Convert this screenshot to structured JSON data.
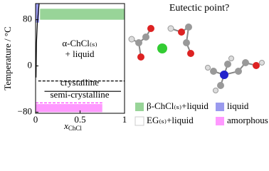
{
  "chart_data": {
    "type": "phase-diagram",
    "title": "Eutectic point?",
    "ylabel": "Temperature / °C",
    "xlabel": {
      "main": "x",
      "sub": "ChCl"
    },
    "xlim": [
      0,
      1
    ],
    "xticks": [
      0,
      0.5,
      1
    ],
    "ylim": [
      -82,
      108
    ],
    "yticks": [
      80,
      0,
      {
        "value": -80,
        "label": "−80"
      }
    ],
    "series": [
      {
        "name": "β-ChCl₍ₛ₎+liquid",
        "color": "#98d498",
        "x": [
          0.05,
          1
        ],
        "values": [
          80,
          99
        ]
      },
      {
        "name": "liquid",
        "color": "#9a9aee",
        "x": [
          0,
          0.04
        ],
        "values": [
          75,
          108
        ]
      },
      {
        "name": "EG₍ₛ₎+liquid",
        "color": "#ffffff"
      },
      {
        "name": "amorphous",
        "color": "#ff99ff",
        "x": [
          0,
          0.75
        ],
        "values": [
          -80,
          -66
        ]
      }
    ],
    "lines": [
      {
        "color": "#000000",
        "style": "dashed",
        "x": [
          0.03,
          1
        ],
        "values": [
          -26,
          -26
        ]
      },
      {
        "color": "#000000",
        "style": "solid",
        "x": [
          0.1,
          0.96
        ],
        "values": [
          -44,
          -44
        ]
      },
      {
        "color": "#ff44ff",
        "style": "dashed",
        "x": [
          0,
          0.75
        ],
        "values": [
          -64,
          -64
        ]
      },
      {
        "color": "#000000",
        "style": "solid",
        "x": [
          0.005,
          0.01,
          0.02,
          0.04
        ],
        "values": [
          -20,
          40,
          75,
          108
        ]
      }
    ],
    "annotations": [
      "α-ChCl₍ₛ₎",
      "+ liquid",
      "crystalline",
      "semi-crystalline"
    ]
  }
}
